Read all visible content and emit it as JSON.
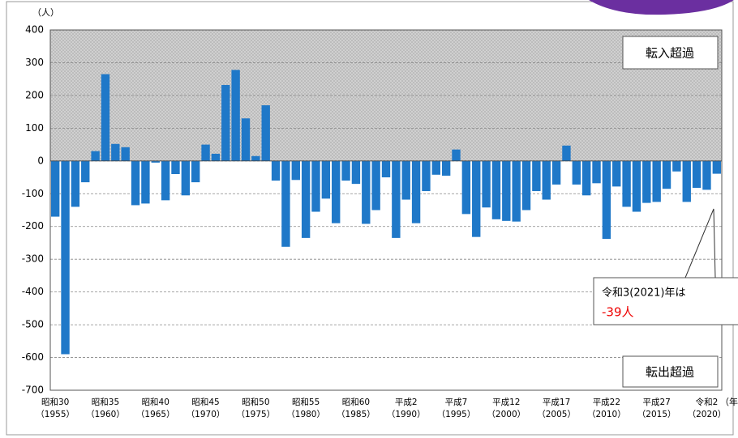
{
  "chart_data": {
    "type": "bar",
    "ylabel": "（人）",
    "xlabel": "（年",
    "categories": [
      "昭和30",
      null,
      null,
      null,
      null,
      "昭和35",
      null,
      null,
      null,
      null,
      "昭和40",
      null,
      null,
      null,
      null,
      "昭和45",
      null,
      null,
      null,
      null,
      "昭和50",
      null,
      null,
      null,
      null,
      "昭和55",
      null,
      null,
      null,
      null,
      "昭和60",
      null,
      null,
      null,
      null,
      "平成2",
      null,
      null,
      null,
      null,
      "平成7",
      null,
      null,
      null,
      null,
      "平成12",
      null,
      null,
      null,
      null,
      "平成17",
      null,
      null,
      null,
      null,
      "平成22",
      null,
      null,
      null,
      null,
      "平成27",
      null,
      null,
      null,
      null,
      "令和2",
      null
    ],
    "category_years": [
      "（1955）",
      null,
      null,
      null,
      null,
      "（1960）",
      null,
      null,
      null,
      null,
      "（1965）",
      null,
      null,
      null,
      null,
      "（1970）",
      null,
      null,
      null,
      null,
      "（1975）",
      null,
      null,
      null,
      null,
      "（1980）",
      null,
      null,
      null,
      null,
      "（1985）",
      null,
      null,
      null,
      null,
      "（1990）",
      null,
      null,
      null,
      null,
      "（1995）",
      null,
      null,
      null,
      null,
      "（2000）",
      null,
      null,
      null,
      null,
      "（2005）",
      null,
      null,
      null,
      null,
      "（2010）",
      null,
      null,
      null,
      null,
      "（2015）",
      null,
      null,
      null,
      null,
      "（2020）",
      null
    ],
    "values": [
      -170,
      -590,
      -140,
      -65,
      30,
      265,
      52,
      42,
      -135,
      -130,
      -5,
      -120,
      -40,
      -105,
      -65,
      50,
      22,
      232,
      278,
      130,
      15,
      170,
      -60,
      -262,
      -58,
      -235,
      -155,
      -115,
      -190,
      -60,
      -70,
      -192,
      -150,
      -50,
      -235,
      -118,
      -190,
      -92,
      -42,
      -45,
      35,
      -162,
      -232,
      -142,
      -178,
      -183,
      -185,
      -150,
      -92,
      -118,
      -72,
      47,
      -72,
      -105,
      -68,
      -238,
      -78,
      -140,
      -155,
      -128,
      -125,
      -85,
      -32,
      -125,
      -82,
      -88,
      -39
    ],
    "color": "#1f78c8",
    "ylim": [
      -700,
      400
    ],
    "yticks": [
      400,
      300,
      200,
      100,
      0,
      -100,
      -200,
      -300,
      -400,
      -500,
      -600,
      -700
    ],
    "grid": true,
    "annotations": {
      "upper": "転入超過",
      "lower": "転出超過",
      "callout_title": "令和3(2021)年は",
      "callout_value": "-39人"
    }
  }
}
